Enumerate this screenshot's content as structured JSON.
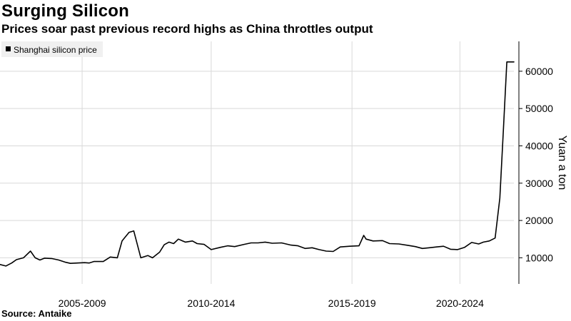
{
  "header": {
    "title": "Surging Silicon",
    "subtitle": "Prices soar past previous record highs as China throttles output"
  },
  "footer": {
    "source": "Source: Antaike"
  },
  "colors": {
    "line": "#000000",
    "grid": "#d9d9d9",
    "axis": "#000000",
    "legend_bg": "#f0f0f0"
  },
  "chart_data": {
    "type": "line",
    "title": "Surging Silicon",
    "subtitle": "Prices soar past previous record highs as China throttles output",
    "xlabel": "",
    "ylabel": "Yuan a ton",
    "ylim": [
      3000,
      68000
    ],
    "xlim": [
      2002.0,
      2023.9
    ],
    "y_axis_side": "right",
    "yticks": [
      10000,
      20000,
      30000,
      40000,
      50000,
      60000
    ],
    "ytick_labels": [
      "10000",
      "20000",
      "30000",
      "40000",
      "50000",
      "60000"
    ],
    "xtick_labels": [
      {
        "x": 2005.5,
        "label": "2005-2009"
      },
      {
        "x": 2011.0,
        "label": "2010-2014"
      },
      {
        "x": 2017.0,
        "label": "2015-2019"
      },
      {
        "x": 2021.6,
        "label": "2020-2024"
      }
    ],
    "grid": "horizontal",
    "legend_position": "top-left",
    "series": [
      {
        "name": "Shanghai silicon price",
        "x": [
          2002.0,
          2002.25,
          2002.5,
          2002.7,
          2003.0,
          2003.3,
          2003.5,
          2003.7,
          2003.9,
          2004.2,
          2004.5,
          2004.8,
          2005.0,
          2005.3,
          2005.6,
          2005.8,
          2006.0,
          2006.4,
          2006.7,
          2007.0,
          2007.2,
          2007.5,
          2007.7,
          2008.0,
          2008.3,
          2008.5,
          2008.8,
          2009.0,
          2009.2,
          2009.4,
          2009.6,
          2009.9,
          2010.2,
          2010.4,
          2010.7,
          2011.0,
          2011.4,
          2011.7,
          2012.0,
          2012.4,
          2012.7,
          2013.0,
          2013.3,
          2013.6,
          2014.0,
          2014.4,
          2014.7,
          2015.0,
          2015.3,
          2015.6,
          2015.9,
          2016.2,
          2016.5,
          2016.9,
          2017.3,
          2017.5,
          2017.6,
          2017.9,
          2018.3,
          2018.6,
          2019.0,
          2019.4,
          2019.7,
          2020.0,
          2020.3,
          2020.6,
          2020.9,
          2021.2,
          2021.5,
          2021.8,
          2022.1,
          2022.4,
          2022.6,
          2022.85,
          2023.1,
          2023.3,
          2023.45,
          2023.6,
          2023.75,
          2023.9
        ],
        "values": [
          8200,
          7800,
          8600,
          9500,
          10000,
          11800,
          10000,
          9400,
          9900,
          9800,
          9400,
          8800,
          8500,
          8600,
          8700,
          8600,
          9000,
          9000,
          10200,
          10000,
          14500,
          16800,
          17200,
          10000,
          10600,
          10000,
          11500,
          13500,
          14200,
          13800,
          15000,
          14200,
          14500,
          13800,
          13600,
          12200,
          12800,
          13200,
          13000,
          13600,
          14000,
          14000,
          14200,
          13900,
          14000,
          13400,
          13200,
          12500,
          12700,
          12200,
          11800,
          11700,
          12900,
          13100,
          13200,
          16000,
          15000,
          14500,
          14600,
          13800,
          13700,
          13300,
          13000,
          12500,
          12700,
          12900,
          13100,
          12300,
          12200,
          12800,
          14100,
          13700,
          14200,
          14500,
          15300,
          26000,
          44000,
          62500,
          62500,
          62500
        ]
      }
    ]
  }
}
